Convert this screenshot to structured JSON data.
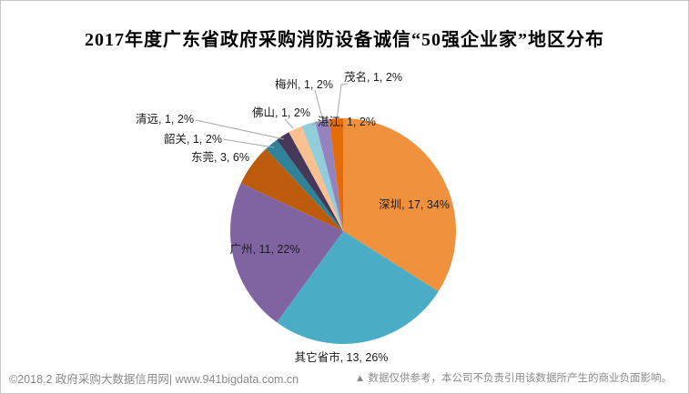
{
  "title": "2017年度广东省政府采购消防设备诚信“50强企业家”地区分布",
  "footer": {
    "left": "©2018.2 政府采购大数据信用网| www.941bigdata.com.cn",
    "right": "▲ 数据仅供参考，本公司不负责引用该数据所产生的商业负面影响。"
  },
  "chart_data": {
    "type": "pie",
    "title": "2017年度广东省政府采购消防设备诚信“50强企业家”地区分布",
    "total": 50,
    "direction": "clockwise",
    "start_angle_deg": 0,
    "legend": "none",
    "label_style": "outside-and-inside callout labels: name, value, percent",
    "label_format": "{name}, {value}, {pct}%",
    "slices": [
      {
        "key": "shenzhen",
        "name": "深圳",
        "value": 17,
        "pct": 34,
        "color": "#F0913E"
      },
      {
        "key": "qita",
        "name": "其它省市",
        "value": 13,
        "pct": 26,
        "color": "#4BACC6"
      },
      {
        "key": "guangzhou",
        "name": "广州",
        "value": 11,
        "pct": 22,
        "color": "#8064A2"
      },
      {
        "key": "dongguan",
        "name": "东莞",
        "value": 3,
        "pct": 6,
        "color": "#BC5B0B"
      },
      {
        "key": "shaoguan",
        "name": "韶关",
        "value": 1,
        "pct": 2,
        "color": "#2F8399"
      },
      {
        "key": "qingyuan",
        "name": "清远",
        "value": 1,
        "pct": 2,
        "color": "#463859"
      },
      {
        "key": "foshan",
        "name": "佛山",
        "value": 1,
        "pct": 2,
        "color": "#FAC090"
      },
      {
        "key": "zhanjiang",
        "name": "湛江",
        "value": 1,
        "pct": 2,
        "color": "#92CDDC"
      },
      {
        "key": "meizhou",
        "name": "梅州",
        "value": 1,
        "pct": 2,
        "color": "#9483BF"
      },
      {
        "key": "maoming",
        "name": "茂名",
        "value": 1,
        "pct": 2,
        "color": "#E36C09"
      }
    ],
    "leader_line_color": "#a6a6a6"
  }
}
